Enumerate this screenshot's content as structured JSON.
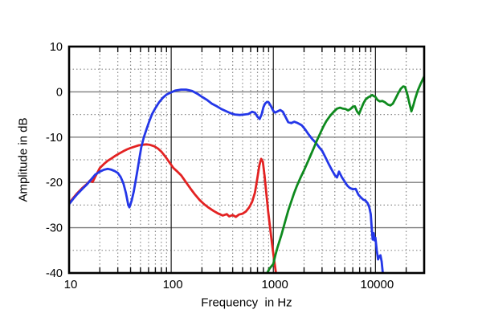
{
  "chart_data": {
    "type": "line",
    "title": "",
    "xlabel": "Frequency  in Hz",
    "ylabel": "Amplitude in dB",
    "xscale": "log",
    "xlim": [
      10,
      30000
    ],
    "ylim": [
      -40,
      10
    ],
    "grid": true,
    "legend": "none",
    "x_major_ticks": [
      {
        "value": 10,
        "label": "10"
      },
      {
        "value": 100,
        "label": "100"
      },
      {
        "value": 1000,
        "label": "1000"
      },
      {
        "value": 10000,
        "label": "10000"
      }
    ],
    "y_major_ticks": [
      {
        "value": 10,
        "label": "10"
      },
      {
        "value": 0,
        "label": "0"
      },
      {
        "value": -10,
        "label": "-10"
      },
      {
        "value": -20,
        "label": "-20"
      },
      {
        "value": -30,
        "label": "-30"
      },
      {
        "value": -40,
        "label": "-40"
      }
    ],
    "y_minor_ticks": [
      5,
      -5,
      -15,
      -25,
      -35
    ],
    "series": [
      {
        "name": "red",
        "color": "#e32222",
        "points": [
          [
            10,
            -24.6
          ],
          [
            11,
            -23.4
          ],
          [
            12,
            -22.4
          ],
          [
            13.5,
            -21.2
          ],
          [
            15,
            -20.3
          ],
          [
            16,
            -19.6
          ],
          [
            17,
            -19.9
          ],
          [
            18,
            -18.8
          ],
          [
            20,
            -16.8
          ],
          [
            22,
            -15.9
          ],
          [
            24,
            -15.2
          ],
          [
            26,
            -14.7
          ],
          [
            28,
            -14.2
          ],
          [
            31,
            -13.6
          ],
          [
            34,
            -13.1
          ],
          [
            37,
            -12.7
          ],
          [
            40,
            -12.4
          ],
          [
            44,
            -12.1
          ],
          [
            48,
            -11.8
          ],
          [
            52,
            -11.7
          ],
          [
            57,
            -11.6
          ],
          [
            62,
            -11.7
          ],
          [
            68,
            -12.0
          ],
          [
            74,
            -12.5
          ],
          [
            80,
            -13.2
          ],
          [
            87,
            -14.2
          ],
          [
            95,
            -15.4
          ],
          [
            105,
            -16.8
          ],
          [
            115,
            -17.6
          ],
          [
            125,
            -18.4
          ],
          [
            140,
            -20.0
          ],
          [
            155,
            -21.4
          ],
          [
            170,
            -22.6
          ],
          [
            190,
            -23.9
          ],
          [
            210,
            -24.8
          ],
          [
            230,
            -25.5
          ],
          [
            260,
            -26.3
          ],
          [
            290,
            -26.9
          ],
          [
            320,
            -27.3
          ],
          [
            350,
            -27.0
          ],
          [
            370,
            -27.5
          ],
          [
            400,
            -27.2
          ],
          [
            430,
            -27.6
          ],
          [
            460,
            -27.1
          ],
          [
            500,
            -26.9
          ],
          [
            540,
            -26.4
          ],
          [
            580,
            -25.5
          ],
          [
            620,
            -24.3
          ],
          [
            660,
            -22.3
          ],
          [
            700,
            -18.9
          ],
          [
            730,
            -16.2
          ],
          [
            760,
            -14.8
          ],
          [
            790,
            -15.4
          ],
          [
            820,
            -18.5
          ],
          [
            850,
            -22.0
          ],
          [
            890,
            -26.4
          ],
          [
            930,
            -30.0
          ],
          [
            970,
            -33.5
          ],
          [
            1010,
            -36.5
          ],
          [
            1060,
            -40
          ]
        ]
      },
      {
        "name": "blue",
        "color": "#2437e8",
        "points": [
          [
            10,
            -24.8
          ],
          [
            11,
            -23.6
          ],
          [
            12,
            -22.6
          ],
          [
            13.5,
            -21.4
          ],
          [
            15,
            -20.4
          ],
          [
            16.5,
            -19.3
          ],
          [
            18,
            -18.3
          ],
          [
            20,
            -17.6
          ],
          [
            22,
            -17.2
          ],
          [
            24,
            -17.0
          ],
          [
            26,
            -17.2
          ],
          [
            28,
            -17.5
          ],
          [
            30,
            -17.9
          ],
          [
            32,
            -18.8
          ],
          [
            34,
            -20.2
          ],
          [
            36,
            -22.3
          ],
          [
            38,
            -25.0
          ],
          [
            39,
            -25.5
          ],
          [
            41,
            -24.0
          ],
          [
            43,
            -22.0
          ],
          [
            45,
            -19.5
          ],
          [
            47,
            -17.0
          ],
          [
            49,
            -14.5
          ],
          [
            51,
            -12.2
          ],
          [
            54,
            -10.0
          ],
          [
            57,
            -8.4
          ],
          [
            61,
            -6.5
          ],
          [
            65,
            -4.9
          ],
          [
            70,
            -3.6
          ],
          [
            76,
            -2.3
          ],
          [
            83,
            -1.3
          ],
          [
            90,
            -0.6
          ],
          [
            100,
            -0.1
          ],
          [
            110,
            0.3
          ],
          [
            125,
            0.5
          ],
          [
            140,
            0.5
          ],
          [
            160,
            0.2
          ],
          [
            180,
            -0.4
          ],
          [
            200,
            -1.1
          ],
          [
            225,
            -1.8
          ],
          [
            250,
            -2.6
          ],
          [
            280,
            -3.2
          ],
          [
            310,
            -3.8
          ],
          [
            340,
            -4.2
          ],
          [
            380,
            -4.7
          ],
          [
            420,
            -5.0
          ],
          [
            470,
            -5.1
          ],
          [
            520,
            -5.0
          ],
          [
            570,
            -4.9
          ],
          [
            620,
            -4.4
          ],
          [
            660,
            -4.6
          ],
          [
            700,
            -5.5
          ],
          [
            735,
            -6.0
          ],
          [
            770,
            -4.9
          ],
          [
            800,
            -3.4
          ],
          [
            830,
            -2.6
          ],
          [
            870,
            -2.2
          ],
          [
            900,
            -2.3
          ],
          [
            950,
            -3.2
          ],
          [
            1000,
            -4.2
          ],
          [
            1040,
            -4.6
          ],
          [
            1100,
            -4.3
          ],
          [
            1170,
            -4.0
          ],
          [
            1240,
            -4.4
          ],
          [
            1320,
            -5.6
          ],
          [
            1400,
            -6.7
          ],
          [
            1500,
            -6.9
          ],
          [
            1600,
            -6.6
          ],
          [
            1700,
            -6.8
          ],
          [
            1800,
            -7.1
          ],
          [
            1900,
            -7.4
          ],
          [
            2050,
            -8.3
          ],
          [
            2200,
            -9.3
          ],
          [
            2400,
            -10.4
          ],
          [
            2600,
            -11.2
          ],
          [
            2800,
            -12.2
          ],
          [
            3000,
            -13.0
          ],
          [
            3200,
            -14.2
          ],
          [
            3500,
            -16.0
          ],
          [
            3800,
            -17.5
          ],
          [
            4000,
            -18.4
          ],
          [
            4200,
            -18.9
          ],
          [
            4400,
            -17.6
          ],
          [
            4700,
            -18.9
          ],
          [
            5000,
            -19.8
          ],
          [
            5300,
            -20.7
          ],
          [
            5600,
            -21.2
          ],
          [
            6000,
            -21.5
          ],
          [
            6400,
            -21.4
          ],
          [
            6800,
            -22.7
          ],
          [
            7200,
            -23.3
          ],
          [
            7600,
            -23.8
          ],
          [
            8000,
            -24.0
          ],
          [
            8400,
            -24.6
          ],
          [
            8700,
            -25.5
          ],
          [
            9000,
            -27.0
          ],
          [
            9200,
            -30.0
          ],
          [
            9400,
            -32.6
          ],
          [
            9600,
            -31.2
          ],
          [
            9800,
            -32.8
          ],
          [
            10000,
            -32.2
          ],
          [
            10300,
            -35.0
          ],
          [
            10600,
            -37.0
          ],
          [
            10900,
            -36.3
          ],
          [
            11200,
            -36.1
          ],
          [
            11500,
            -37.5
          ],
          [
            11800,
            -40
          ]
        ]
      },
      {
        "name": "green",
        "color": "#0e8a1e",
        "points": [
          [
            870,
            -40
          ],
          [
            920,
            -39.0
          ],
          [
            1000,
            -38.0
          ],
          [
            1050,
            -36.0
          ],
          [
            1100,
            -34.3
          ],
          [
            1200,
            -31.6
          ],
          [
            1300,
            -28.8
          ],
          [
            1400,
            -26.2
          ],
          [
            1500,
            -24.2
          ],
          [
            1600,
            -22.3
          ],
          [
            1700,
            -20.8
          ],
          [
            1850,
            -18.9
          ],
          [
            2000,
            -17.3
          ],
          [
            2150,
            -15.7
          ],
          [
            2300,
            -14.2
          ],
          [
            2500,
            -12.3
          ],
          [
            2700,
            -10.5
          ],
          [
            2900,
            -9.0
          ],
          [
            3100,
            -7.6
          ],
          [
            3300,
            -6.5
          ],
          [
            3600,
            -5.3
          ],
          [
            3900,
            -4.4
          ],
          [
            4200,
            -3.7
          ],
          [
            4500,
            -3.5
          ],
          [
            4800,
            -3.7
          ],
          [
            5100,
            -3.8
          ],
          [
            5400,
            -4.1
          ],
          [
            5700,
            -3.8
          ],
          [
            6000,
            -3.3
          ],
          [
            6300,
            -3.2
          ],
          [
            6600,
            -4.3
          ],
          [
            6900,
            -4.9
          ],
          [
            7200,
            -3.9
          ],
          [
            7600,
            -2.6
          ],
          [
            8000,
            -1.7
          ],
          [
            8500,
            -1.2
          ],
          [
            9000,
            -0.9
          ],
          [
            9300,
            -0.7
          ],
          [
            9700,
            -1.0
          ],
          [
            10000,
            -1.1
          ],
          [
            10500,
            -1.8
          ],
          [
            11000,
            -2.1
          ],
          [
            11700,
            -2.0
          ],
          [
            12400,
            -2.3
          ],
          [
            13200,
            -2.8
          ],
          [
            14000,
            -3.0
          ],
          [
            14800,
            -2.6
          ],
          [
            15700,
            -1.5
          ],
          [
            16700,
            -0.3
          ],
          [
            17700,
            0.7
          ],
          [
            18700,
            1.2
          ],
          [
            19500,
            1.1
          ],
          [
            20500,
            -0.5
          ],
          [
            21500,
            -2.5
          ],
          [
            22500,
            -4.3
          ],
          [
            23500,
            -3.0
          ],
          [
            24500,
            -1.5
          ],
          [
            26000,
            0.3
          ],
          [
            27500,
            1.6
          ],
          [
            29000,
            2.7
          ],
          [
            30000,
            3.4
          ]
        ]
      }
    ]
  }
}
